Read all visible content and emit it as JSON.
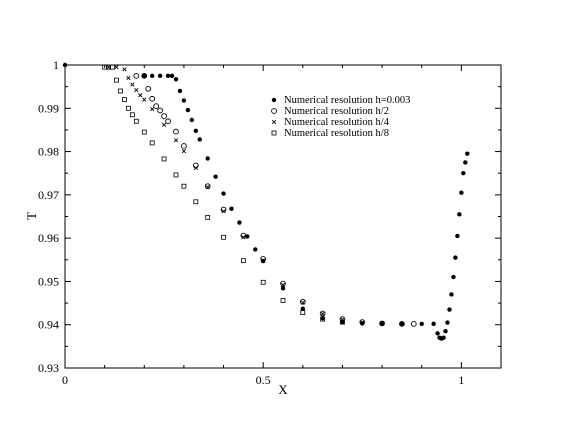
{
  "chart_data": {
    "type": "scatter",
    "title": "",
    "xlabel": "X",
    "ylabel": "T",
    "xlim": [
      0,
      1.1
    ],
    "ylim": [
      0.93,
      1.0
    ],
    "x_ticks": [
      0,
      0.5,
      1
    ],
    "x_tick_labels": [
      "0",
      "0.5",
      "1"
    ],
    "y_ticks": [
      0.93,
      0.94,
      0.95,
      0.96,
      0.97,
      0.98,
      0.99,
      1.0
    ],
    "y_tick_labels": [
      "0.93",
      "0.94",
      "0.95",
      "0.96",
      "0.97",
      "0.98",
      "0.99",
      "1"
    ],
    "grid": false,
    "legend_position": "top-right",
    "series": [
      {
        "name": "Numerical resolution h=0.003",
        "marker": "filled-circle",
        "color": "#000000",
        "x": [
          0.0,
          0.2,
          0.22,
          0.24,
          0.26,
          0.27,
          0.28,
          0.29,
          0.3,
          0.31,
          0.32,
          0.33,
          0.34,
          0.36,
          0.38,
          0.4,
          0.42,
          0.44,
          0.46,
          0.48,
          0.5,
          0.55,
          0.6,
          0.65,
          0.7,
          0.75,
          0.8,
          0.85,
          0.9,
          0.93,
          0.94,
          0.945,
          0.95,
          0.955,
          0.96,
          0.965,
          0.97,
          0.975,
          0.98,
          0.985,
          0.99,
          0.995,
          1.0,
          1.005,
          1.01,
          1.015
        ],
        "y": [
          1.0,
          0.9975,
          0.9975,
          0.9975,
          0.9975,
          0.9975,
          0.9967,
          0.994,
          0.9918,
          0.9896,
          0.9873,
          0.9848,
          0.9828,
          0.9784,
          0.9742,
          0.9703,
          0.9668,
          0.9636,
          0.9604,
          0.9574,
          0.9547,
          0.9484,
          0.9437,
          0.9415,
          0.9406,
          0.9403,
          0.9402,
          0.9402,
          0.9402,
          0.9402,
          0.938,
          0.937,
          0.9368,
          0.937,
          0.9385,
          0.9405,
          0.9435,
          0.947,
          0.951,
          0.9555,
          0.9605,
          0.9655,
          0.9705,
          0.975,
          0.9775,
          0.9795
        ]
      },
      {
        "name": "Numerical resolution h/2",
        "marker": "open-circle",
        "color": "#000000",
        "x": [
          0.18,
          0.2,
          0.21,
          0.22,
          0.23,
          0.24,
          0.25,
          0.26,
          0.28,
          0.3,
          0.33,
          0.36,
          0.4,
          0.45,
          0.5,
          0.55,
          0.6,
          0.65,
          0.7,
          0.75,
          0.8,
          0.85,
          0.88
        ],
        "y": [
          0.9975,
          0.9975,
          0.9945,
          0.9922,
          0.9905,
          0.9895,
          0.9882,
          0.987,
          0.9846,
          0.9813,
          0.9768,
          0.972,
          0.9666,
          0.9606,
          0.9552,
          0.9495,
          0.9453,
          0.9426,
          0.9413,
          0.9406,
          0.9403,
          0.9402,
          0.9402
        ]
      },
      {
        "name": "Numerical resolution h/4",
        "marker": "cross",
        "color": "#000000",
        "x": [
          0.11,
          0.13,
          0.15,
          0.16,
          0.17,
          0.18,
          0.19,
          0.2,
          0.22,
          0.25,
          0.28,
          0.3,
          0.33,
          0.36,
          0.4,
          0.45,
          0.5,
          0.55,
          0.6,
          0.65,
          0.7,
          0.75,
          0.8
        ],
        "y": [
          0.9995,
          0.9995,
          0.999,
          0.997,
          0.9955,
          0.9942,
          0.993,
          0.992,
          0.9898,
          0.9862,
          0.9826,
          0.9801,
          0.9762,
          0.9718,
          0.9662,
          0.9602,
          0.9548,
          0.9492,
          0.9451,
          0.9425,
          0.9412,
          0.9405,
          0.9403
        ]
      },
      {
        "name": "Numerical resolution h/8",
        "marker": "open-square",
        "color": "#000000",
        "x": [
          0.1,
          0.11,
          0.12,
          0.13,
          0.14,
          0.15,
          0.16,
          0.17,
          0.18,
          0.2,
          0.22,
          0.25,
          0.28,
          0.3,
          0.33,
          0.36,
          0.4,
          0.45,
          0.5,
          0.55,
          0.6,
          0.65,
          0.7
        ],
        "y": [
          0.9995,
          0.9995,
          0.9995,
          0.9965,
          0.994,
          0.992,
          0.99,
          0.9885,
          0.987,
          0.9845,
          0.982,
          0.9783,
          0.9746,
          0.972,
          0.9684,
          0.9648,
          0.9602,
          0.9548,
          0.9498,
          0.9456,
          0.9428,
          0.9413,
          0.9406
        ]
      }
    ]
  }
}
